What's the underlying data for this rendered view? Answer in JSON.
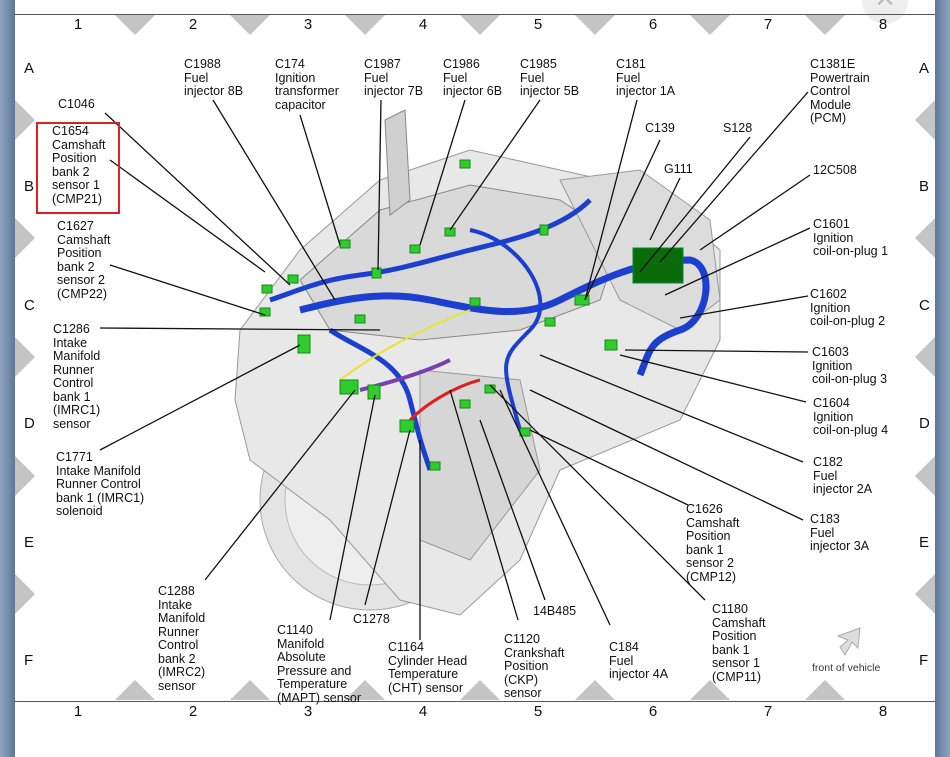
{
  "grid": {
    "columns": [
      "1",
      "2",
      "3",
      "4",
      "5",
      "6",
      "7",
      "8"
    ],
    "rows": [
      "A",
      "B",
      "C",
      "D",
      "E",
      "F"
    ]
  },
  "window": {
    "close_icon": "close-icon"
  },
  "callouts": {
    "c1988": "C1988\nFuel\ninjector 8B",
    "c174": "C174\nIgnition\ntransformer\ncapacitor",
    "c1987": "C1987\nFuel\ninjector 7B",
    "c1986": "C1986\nFuel\ninjector 6B",
    "c1985": "C1985\nFuel\ninjector 5B",
    "c181": "C181\nFuel\ninjector 1A",
    "c1381e": "C1381E\nPowertrain\nControl\nModule\n(PCM)",
    "c1046": "C1046",
    "c1654": "C1654\nCamshaft\nPosition\nbank 2\nsensor 1\n(CMP21)",
    "c139": "C139",
    "s128": "S128",
    "g111": "G111",
    "c12c508": "12C508",
    "c1627": "C1627\nCamshaft\nPosition\nbank 2\nsensor 2\n(CMP22)",
    "c1601": "C1601\nIgnition\ncoil-on-plug 1",
    "c1602": "C1602\nIgnition\ncoil-on-plug 2",
    "c1286": "C1286\nIntake\nManifold\nRunner\nControl\nbank 1\n(IMRC1)\nsensor",
    "c1603": "C1603\nIgnition\ncoil-on-plug 3",
    "c1604": "C1604\nIgnition\ncoil-on-plug 4",
    "c1771": "C1771\nIntake Manifold\nRunner Control\nbank 1 (IMRC1)\nsolenoid",
    "c182": "C182\nFuel\ninjector 2A",
    "c183": "C183\nFuel\ninjector 3A",
    "c1626": "C1626\nCamshaft\nPosition\nbank 1\nsensor 2\n(CMP12)",
    "c1288": "C1288\nIntake\nManifold\nRunner\nControl\nbank 2\n(IMRC2)\nsensor",
    "c14b485": "14B485",
    "c1278": "C1278",
    "c1180": "C1180\nCamshaft\nPosition\nbank 1\nsensor 1\n(CMP11)",
    "c1140": "C1140\nManifold\nAbsolute\nPressure and\nTemperature\n(MAPT) sensor",
    "c1164": "C1164\nCylinder Head\nTemperature\n(CHT) sensor",
    "c1120": "C1120\nCrankshaft\nPosition\n(CKP)\nsensor",
    "c184": "C184\nFuel\ninjector 4A"
  },
  "highlighted_callout": "C1654",
  "front_of_vehicle": "front of vehicle",
  "colors": {
    "harness": "#1c3fd0",
    "connector": "#2ecc2e",
    "highlight": "#e02020",
    "grid_marker": "#c4c4c4"
  }
}
